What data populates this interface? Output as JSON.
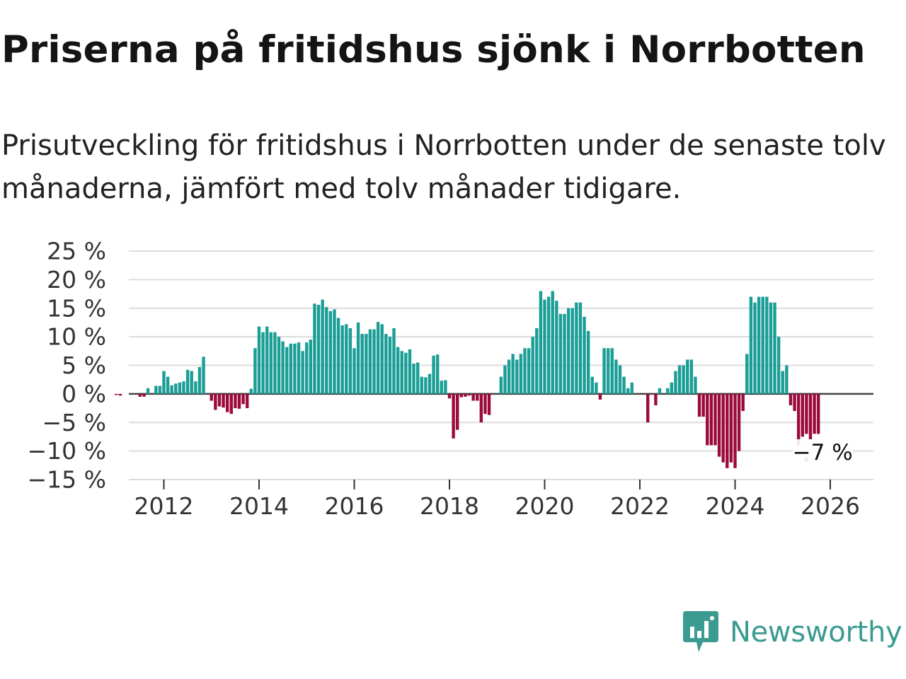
{
  "title": "Priserna på fritidshus sjönk i Norrbotten",
  "subtitle": "Prisutveckling för fritidshus i Norrbotten under de senaste tolv månaderna, jämfört med tolv månader tidigare.",
  "brand": "Newsworthy",
  "colors": {
    "positive": "#1a9e96",
    "negative": "#9b0a3c",
    "brand": "#3b9b91",
    "grid": "#dcdcdc",
    "zero": "#444444"
  },
  "chart_data": {
    "type": "bar",
    "title": "",
    "xlabel": "",
    "ylabel": "",
    "ylim": [
      -15,
      25
    ],
    "yticks": [
      25,
      20,
      15,
      10,
      5,
      0,
      -5,
      -10,
      -15
    ],
    "ytick_labels": [
      "25 %",
      "20 %",
      "15 %",
      "10 %",
      "5 %",
      "0 %",
      "−5 %",
      "−10 %",
      "−15 %"
    ],
    "xticks": [
      "2012",
      "2014",
      "2016",
      "2018",
      "2020",
      "2022",
      "2024",
      "2026"
    ],
    "start": "2011-01",
    "frequency": "monthly",
    "values": [
      -0.2,
      -0.3,
      0,
      0,
      0,
      0,
      -0.5,
      -0.5,
      1,
      0,
      1.4,
      1.4,
      4,
      3,
      1.5,
      1.8,
      2,
      2.2,
      4.2,
      4,
      2.2,
      4.7,
      6.5,
      0,
      -1.2,
      -2.8,
      -2.2,
      -2.4,
      -3.2,
      -3.5,
      -2.5,
      -2.6,
      -1.8,
      -2.5,
      0.9,
      8,
      11.8,
      10.8,
      11.8,
      10.8,
      10.8,
      10,
      9.2,
      8.2,
      8.8,
      8.8,
      9,
      7.5,
      9,
      9.5,
      15.8,
      15.6,
      16.5,
      15.2,
      14.5,
      14.8,
      13.3,
      12,
      12.2,
      11.5,
      8,
      12.5,
      10.5,
      10.5,
      11.3,
      11.3,
      12.6,
      12.2,
      10.5,
      10,
      11.5,
      8.2,
      7.5,
      7.2,
      7.8,
      5.3,
      5.5,
      3,
      2.9,
      3.5,
      6.7,
      6.9,
      2.3,
      2.4,
      -0.8,
      -7.8,
      -6.3,
      -0.6,
      -0.5,
      -0.3,
      -1.2,
      -1.2,
      -5,
      -3.5,
      -3.7,
      0,
      0,
      3,
      5,
      6,
      7,
      6,
      7,
      8,
      8,
      10,
      11.5,
      18,
      16.5,
      17,
      18,
      16.3,
      14,
      14,
      15,
      15,
      16,
      16,
      13.5,
      11,
      3,
      2,
      -1,
      8,
      8,
      8,
      6,
      5,
      3,
      1,
      2,
      0,
      0,
      0,
      -5,
      0,
      -2,
      1,
      0,
      1,
      2,
      4,
      5,
      5,
      6,
      6,
      3,
      -4,
      -4,
      -9,
      -9,
      -9,
      -11,
      -12,
      -13,
      -12,
      -13,
      -10,
      -3,
      7,
      17,
      16,
      17,
      17,
      17,
      16,
      16,
      10,
      4,
      5,
      -2,
      -3,
      -9,
      -7.5,
      -7,
      -8,
      -7,
      -7
    ],
    "marker_value": -11.5,
    "annotation": "−7 %"
  }
}
